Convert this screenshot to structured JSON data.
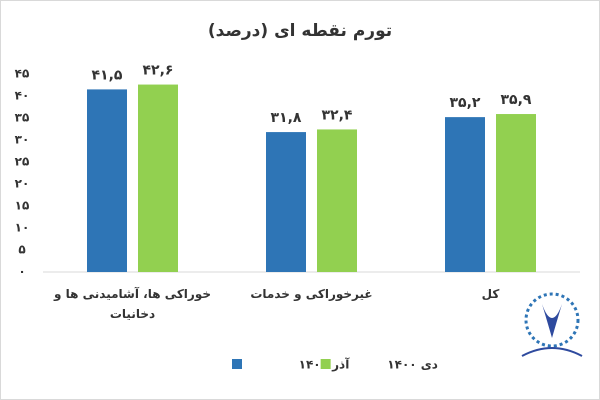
{
  "chart_data": {
    "type": "bar",
    "title": "تورم نقطه ای (درصد)",
    "categories": [
      "خوراکی ها، آشامیدنی ها و دخانیات",
      "غیرخوراکی و خدمات",
      "کل"
    ],
    "series": [
      {
        "name": "آذر ۱۴۰۰",
        "color": "#2e75b6",
        "values": [
          41.5,
          31.8,
          35.2
        ],
        "value_labels": [
          "۴۱,۵",
          "۳۱,۸",
          "۳۵,۲"
        ]
      },
      {
        "name": "دی ۱۴۰۰",
        "color": "#92d050",
        "values": [
          42.6,
          32.4,
          35.9
        ],
        "value_labels": [
          "۴۲,۶",
          "۳۲,۴",
          "۳۵,۹"
        ]
      }
    ],
    "ylim": [
      0,
      45
    ],
    "yticks": [
      {
        "value": 0,
        "label": "۰"
      },
      {
        "value": 5,
        "label": "۵"
      },
      {
        "value": 10,
        "label": "۱۰"
      },
      {
        "value": 15,
        "label": "۱۵"
      },
      {
        "value": 20,
        "label": "۲۰"
      },
      {
        "value": 25,
        "label": "۲۵"
      },
      {
        "value": 30,
        "label": "۳۰"
      },
      {
        "value": 35,
        "label": "۳۵"
      },
      {
        "value": 40,
        "label": "۴۰"
      },
      {
        "value": 45,
        "label": "۴۵"
      }
    ],
    "grid": false,
    "legend": "bottom"
  }
}
